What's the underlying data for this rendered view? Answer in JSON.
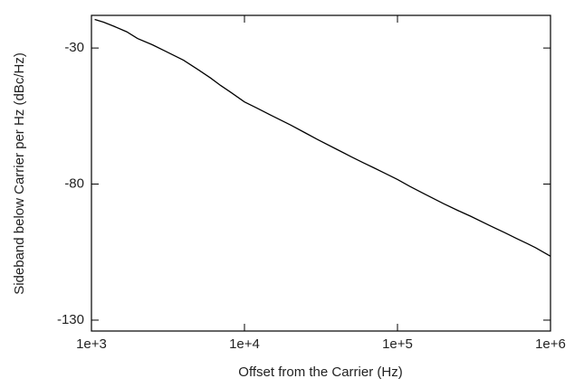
{
  "chart_data": {
    "type": "line",
    "xlabel": "Offset from the Carrier (Hz)",
    "ylabel": "Sideband below Carrier per Hz (dBc/Hz)",
    "xscale": "log",
    "color": "#000000",
    "x": [
      1050,
      1200,
      1400,
      1700,
      2000,
      2500,
      3000,
      4000,
      5000,
      6000,
      7000,
      8000,
      10000,
      12000,
      15000,
      20000,
      25000,
      30000,
      40000,
      50000,
      60000,
      70000,
      80000,
      100000,
      120000,
      150000,
      200000,
      250000,
      300000,
      400000,
      500000,
      600000,
      700000,
      800000,
      1000000
    ],
    "values": [
      -19.5,
      -20.5,
      -22,
      -24,
      -26.5,
      -28.8,
      -31,
      -34.5,
      -38,
      -41,
      -43.8,
      -46,
      -49.8,
      -52,
      -54.8,
      -58.3,
      -61.2,
      -63.6,
      -67.2,
      -70,
      -72.2,
      -74,
      -75.6,
      -78.3,
      -80.8,
      -83.6,
      -87.2,
      -89.8,
      -91.8,
      -95.2,
      -97.8,
      -100,
      -101.8,
      -103.4,
      -106.5
    ],
    "xlim": [
      1000,
      1000000
    ],
    "xticks": [
      {
        "value": 1000,
        "label": "1e+3"
      },
      {
        "value": 10000,
        "label": "1e+4"
      },
      {
        "value": 100000,
        "label": "1e+5"
      },
      {
        "value": 1000000,
        "label": "1e+6"
      }
    ],
    "ylim": [
      -134,
      -18
    ],
    "yticks": [
      -30,
      -80,
      -130
    ]
  }
}
